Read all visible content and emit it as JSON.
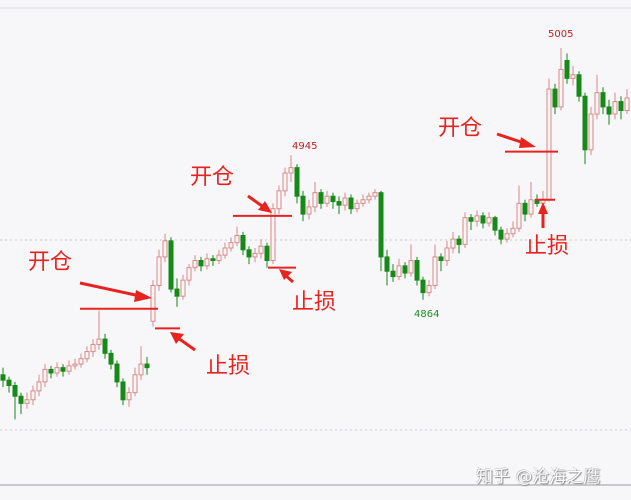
{
  "chart_data": {
    "type": "candlestick",
    "title": "",
    "xlabel": "",
    "ylabel": "",
    "ylim": [
      4780,
      5020
    ],
    "grid": true,
    "colors": {
      "up": "#d98a8a",
      "down": "#168a16",
      "annotation": "#e8231f",
      "low_label": "#1e8a1e"
    },
    "ohlc": [
      [
        4822,
        4826,
        4815,
        4819
      ],
      [
        4819,
        4821,
        4812,
        4816
      ],
      [
        4816,
        4818,
        4797,
        4810
      ],
      [
        4810,
        4812,
        4800,
        4806
      ],
      [
        4806,
        4812,
        4803,
        4808
      ],
      [
        4808,
        4816,
        4805,
        4813
      ],
      [
        4813,
        4822,
        4810,
        4818
      ],
      [
        4818,
        4828,
        4815,
        4825
      ],
      [
        4825,
        4827,
        4820,
        4823
      ],
      [
        4823,
        4829,
        4821,
        4826
      ],
      [
        4826,
        4828,
        4821,
        4824
      ],
      [
        4824,
        4830,
        4822,
        4827
      ],
      [
        4827,
        4831,
        4825,
        4828
      ],
      [
        4828,
        4834,
        4826,
        4831
      ],
      [
        4831,
        4838,
        4829,
        4835
      ],
      [
        4835,
        4842,
        4832,
        4839
      ],
      [
        4839,
        4858,
        4836,
        4842
      ],
      [
        4842,
        4845,
        4831,
        4834
      ],
      [
        4834,
        4836,
        4825,
        4828
      ],
      [
        4828,
        4830,
        4815,
        4818
      ],
      [
        4818,
        4820,
        4805,
        4808
      ],
      [
        4808,
        4815,
        4804,
        4812
      ],
      [
        4812,
        4826,
        4810,
        4822
      ],
      [
        4822,
        4838,
        4819,
        4828
      ],
      [
        4828,
        4832,
        4822,
        4826
      ],
      [
        4852,
        4875,
        4849,
        4872
      ],
      [
        4872,
        4892,
        4869,
        4888
      ],
      [
        4888,
        4901,
        4885,
        4897
      ],
      [
        4897,
        4899,
        4868,
        4870
      ],
      [
        4870,
        4876,
        4860,
        4866
      ],
      [
        4866,
        4878,
        4864,
        4875
      ],
      [
        4875,
        4884,
        4872,
        4882
      ],
      [
        4882,
        4889,
        4880,
        4886
      ],
      [
        4886,
        4888,
        4880,
        4883
      ],
      [
        4883,
        4890,
        4881,
        4887
      ],
      [
        4887,
        4889,
        4883,
        4886
      ],
      [
        4886,
        4892,
        4884,
        4889
      ],
      [
        4889,
        4896,
        4887,
        4893
      ],
      [
        4893,
        4899,
        4891,
        4896
      ],
      [
        4896,
        4905,
        4894,
        4900
      ],
      [
        4900,
        4902,
        4889,
        4892
      ],
      [
        4892,
        4894,
        4884,
        4888
      ],
      [
        4888,
        4893,
        4885,
        4890
      ],
      [
        4890,
        4898,
        4887,
        4894
      ],
      [
        4894,
        4896,
        4882,
        4886
      ],
      [
        4886,
        4918,
        4884,
        4915
      ],
      [
        4915,
        4928,
        4912,
        4925
      ],
      [
        4925,
        4938,
        4922,
        4935
      ],
      [
        4935,
        4945,
        4930,
        4938
      ],
      [
        4938,
        4940,
        4918,
        4922
      ],
      [
        4922,
        4925,
        4908,
        4912
      ],
      [
        4912,
        4920,
        4909,
        4916
      ],
      [
        4916,
        4930,
        4913,
        4924
      ],
      [
        4924,
        4926,
        4915,
        4918
      ],
      [
        4918,
        4925,
        4916,
        4922
      ],
      [
        4922,
        4924,
        4915,
        4919
      ],
      [
        4919,
        4922,
        4912,
        4917
      ],
      [
        4917,
        4924,
        4914,
        4921
      ],
      [
        4921,
        4923,
        4912,
        4915
      ],
      [
        4915,
        4920,
        4913,
        4918
      ],
      [
        4918,
        4923,
        4916,
        4920
      ],
      [
        4920,
        4924,
        4918,
        4922
      ],
      [
        4922,
        4926,
        4920,
        4924
      ],
      [
        4924,
        4925,
        4880,
        4888
      ],
      [
        4888,
        4892,
        4872,
        4880
      ],
      [
        4880,
        4884,
        4874,
        4877
      ],
      [
        4877,
        4887,
        4875,
        4883
      ],
      [
        4883,
        4885,
        4876,
        4879
      ],
      [
        4879,
        4895,
        4877,
        4886
      ],
      [
        4886,
        4888,
        4872,
        4875
      ],
      [
        4875,
        4877,
        4864,
        4868
      ],
      [
        4868,
        4875,
        4866,
        4872
      ],
      [
        4872,
        4895,
        4870,
        4888
      ],
      [
        4888,
        4890,
        4880,
        4886
      ],
      [
        4886,
        4897,
        4883,
        4893
      ],
      [
        4893,
        4902,
        4890,
        4898
      ],
      [
        4898,
        4900,
        4890,
        4895
      ],
      [
        4895,
        4913,
        4893,
        4910
      ],
      [
        4910,
        4912,
        4903,
        4908
      ],
      [
        4908,
        4914,
        4905,
        4911
      ],
      [
        4911,
        4913,
        4904,
        4907
      ],
      [
        4907,
        4913,
        4905,
        4910
      ],
      [
        4910,
        4911,
        4900,
        4903
      ],
      [
        4903,
        4905,
        4895,
        4898
      ],
      [
        4898,
        4904,
        4896,
        4901
      ],
      [
        4901,
        4908,
        4899,
        4904
      ],
      [
        4904,
        4928,
        4902,
        4918
      ],
      [
        4918,
        4920,
        4908,
        4912
      ],
      [
        4912,
        4930,
        4910,
        4920
      ],
      [
        4920,
        4923,
        4916,
        4918
      ],
      [
        4918,
        4925,
        4916,
        4920
      ],
      [
        4920,
        4988,
        4919,
        4982
      ],
      [
        4982,
        4985,
        4968,
        4972
      ],
      [
        4972,
        5005,
        4970,
        4993
      ],
      [
        4998,
        5002,
        4985,
        4988
      ],
      [
        4988,
        4995,
        4984,
        4990
      ],
      [
        4990,
        4992,
        4975,
        4978
      ],
      [
        4978,
        4980,
        4940,
        4948
      ],
      [
        4948,
        4972,
        4945,
        4968
      ],
      [
        4968,
        4990,
        4965,
        4980
      ],
      [
        4980,
        4983,
        4968,
        4972
      ],
      [
        4972,
        4976,
        4962,
        4968
      ],
      [
        4968,
        4980,
        4965,
        4975
      ],
      [
        4975,
        4978,
        4965,
        4970
      ],
      [
        4970,
        4982,
        4968,
        4977
      ]
    ],
    "peak_labels": {
      "high1": "4945",
      "high2": "5005",
      "low": "4864"
    },
    "trades": [
      {
        "entry_label": "开仓",
        "stop_label": "止损",
        "entry_price": 4859,
        "stop_price": 4848
      },
      {
        "entry_label": "开仓",
        "stop_label": "止损",
        "entry_price": 4911,
        "stop_price": 4882
      },
      {
        "entry_label": "开仓",
        "stop_label": "止损",
        "entry_price": 4947,
        "stop_price": 4920
      }
    ]
  },
  "watermark": "知乎 @沧海之鹰"
}
